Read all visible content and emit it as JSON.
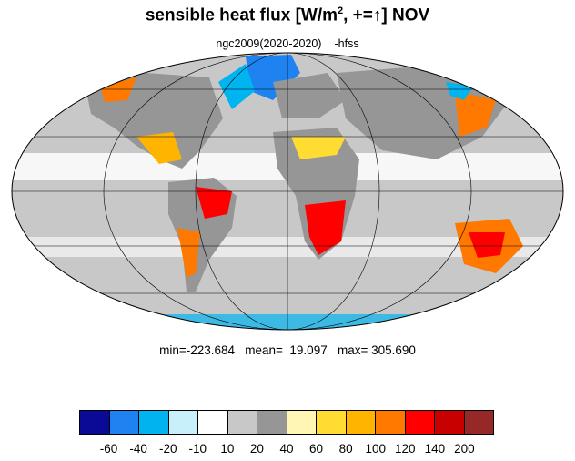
{
  "title": {
    "main": "sensible heat flux [W/m",
    "exponent": "2",
    "suffix": ", +=↑]  NOV"
  },
  "subtitle": {
    "run": "ngc2009(2020-2020)",
    "variable": "-hfss"
  },
  "stats": "min=-223.684   mean=  19.097   max= 305.690",
  "colorbar": {
    "colors": [
      "#0a0a96",
      "#1e82f0",
      "#00b4f0",
      "#c8f0fa",
      "#ffffff",
      "#c8c8c8",
      "#969696",
      "#fff5b4",
      "#ffdc32",
      "#ffb400",
      "#ff7800",
      "#ff0000",
      "#c80000",
      "#962828"
    ],
    "labels": [
      "-60",
      "-40",
      "-20",
      "-10",
      "10",
      "20",
      "40",
      "60",
      "80",
      "100",
      "120",
      "140",
      "200"
    ]
  },
  "map": {
    "projection": "Mollweide",
    "ocean_color": "#c8c8c8",
    "land_color": "#969696"
  }
}
